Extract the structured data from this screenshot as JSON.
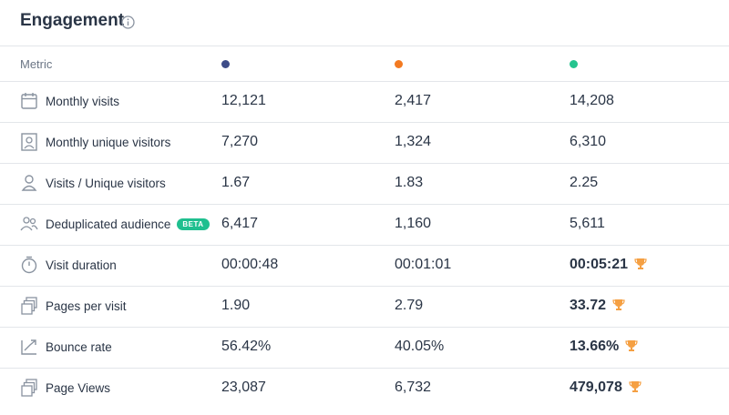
{
  "header": {
    "title": "Engagement"
  },
  "table": {
    "metric_header": "Metric",
    "column_colors": [
      "#3d4c88",
      "#f37a21",
      "#25c48e"
    ],
    "rows": [
      {
        "label": "Monthly visits",
        "values": [
          "12,121",
          "2,417",
          "14,208"
        ]
      },
      {
        "label": "Monthly unique visitors",
        "values": [
          "7,270",
          "1,324",
          "6,310"
        ]
      },
      {
        "label": "Visits / Unique visitors",
        "values": [
          "1.67",
          "1.83",
          "2.25"
        ]
      },
      {
        "label": "Deduplicated audience",
        "badge": "BETA",
        "values": [
          "6,417",
          "1,160",
          "5,611"
        ]
      },
      {
        "label": "Visit duration",
        "values": [
          "00:00:48",
          "00:01:01",
          "00:05:21"
        ],
        "best": 2
      },
      {
        "label": "Pages per visit",
        "values": [
          "1.90",
          "2.79",
          "33.72"
        ],
        "best": 2
      },
      {
        "label": "Bounce rate",
        "values": [
          "56.42%",
          "40.05%",
          "13.66%"
        ],
        "best": 2
      },
      {
        "label": "Page Views",
        "values": [
          "23,087",
          "6,732",
          "479,078"
        ],
        "best": 2
      }
    ]
  }
}
